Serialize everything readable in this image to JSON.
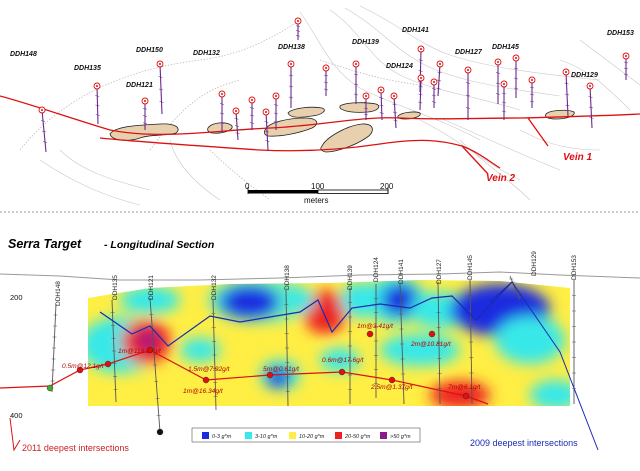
{
  "plan_view": {
    "holes": [
      {
        "label": "DDH148"
      },
      {
        "label": "DDH135"
      },
      {
        "label": "DDH150"
      },
      {
        "label": "DDH121"
      },
      {
        "label": "DDH132"
      },
      {
        "label": "DDH138"
      },
      {
        "label": "DDH139"
      },
      {
        "label": "DDH141"
      },
      {
        "label": "DDH124"
      },
      {
        "label": "DDH127"
      },
      {
        "label": "DDH145"
      },
      {
        "label": "DDH129"
      },
      {
        "label": "DDH153"
      }
    ],
    "vein_labels": [
      "Vein 1",
      "Vein 2"
    ],
    "scale_bar": {
      "ticks": [
        "0",
        "100",
        "200"
      ],
      "unit": "meters"
    }
  },
  "section": {
    "title": "Serra Target",
    "subtitle": "- Longitudinal Section",
    "depth_ticks": [
      "200",
      "400"
    ],
    "hole_labels": [
      "DDH148",
      "DDH135",
      "DDH121",
      "DDH132",
      "DDH138",
      "DDH139",
      "DDH124",
      "DDH141",
      "DDH127",
      "DDH145",
      "DDH129",
      "DDH153"
    ],
    "intersections": [
      "0.5m@12.1g/t",
      "1m@118.27g/t",
      "1.5m@7.92g/t",
      "1m@16.34g/t",
      "5m@0.61g/t",
      "0.6m@17.6g/t",
      "1m@3.41g/t",
      "2m@10.81g/t",
      "2.5m@1.37g/t",
      "7m@6.1g/t"
    ],
    "legend": [
      {
        "label": "0-3 g*m",
        "color": "#1a2be0"
      },
      {
        "label": "3-10 g*m",
        "color": "#39e8e8"
      },
      {
        "label": "10-20 g*m",
        "color": "#ffee44"
      },
      {
        "label": "20-50 g*m",
        "color": "#ee2222"
      },
      {
        "label": ">50 g*m",
        "color": "#8a1b8c"
      }
    ],
    "notes": {
      "deep_2011": "2011 deepest intersections",
      "deep_2009": "2009 deepest intersections"
    }
  },
  "colors": {
    "vein_red": "#dd1111",
    "pit_line_blue": "#1a2bb0",
    "pod_fill": "#e8cfae",
    "hole_purple": "#6a2a8a"
  }
}
